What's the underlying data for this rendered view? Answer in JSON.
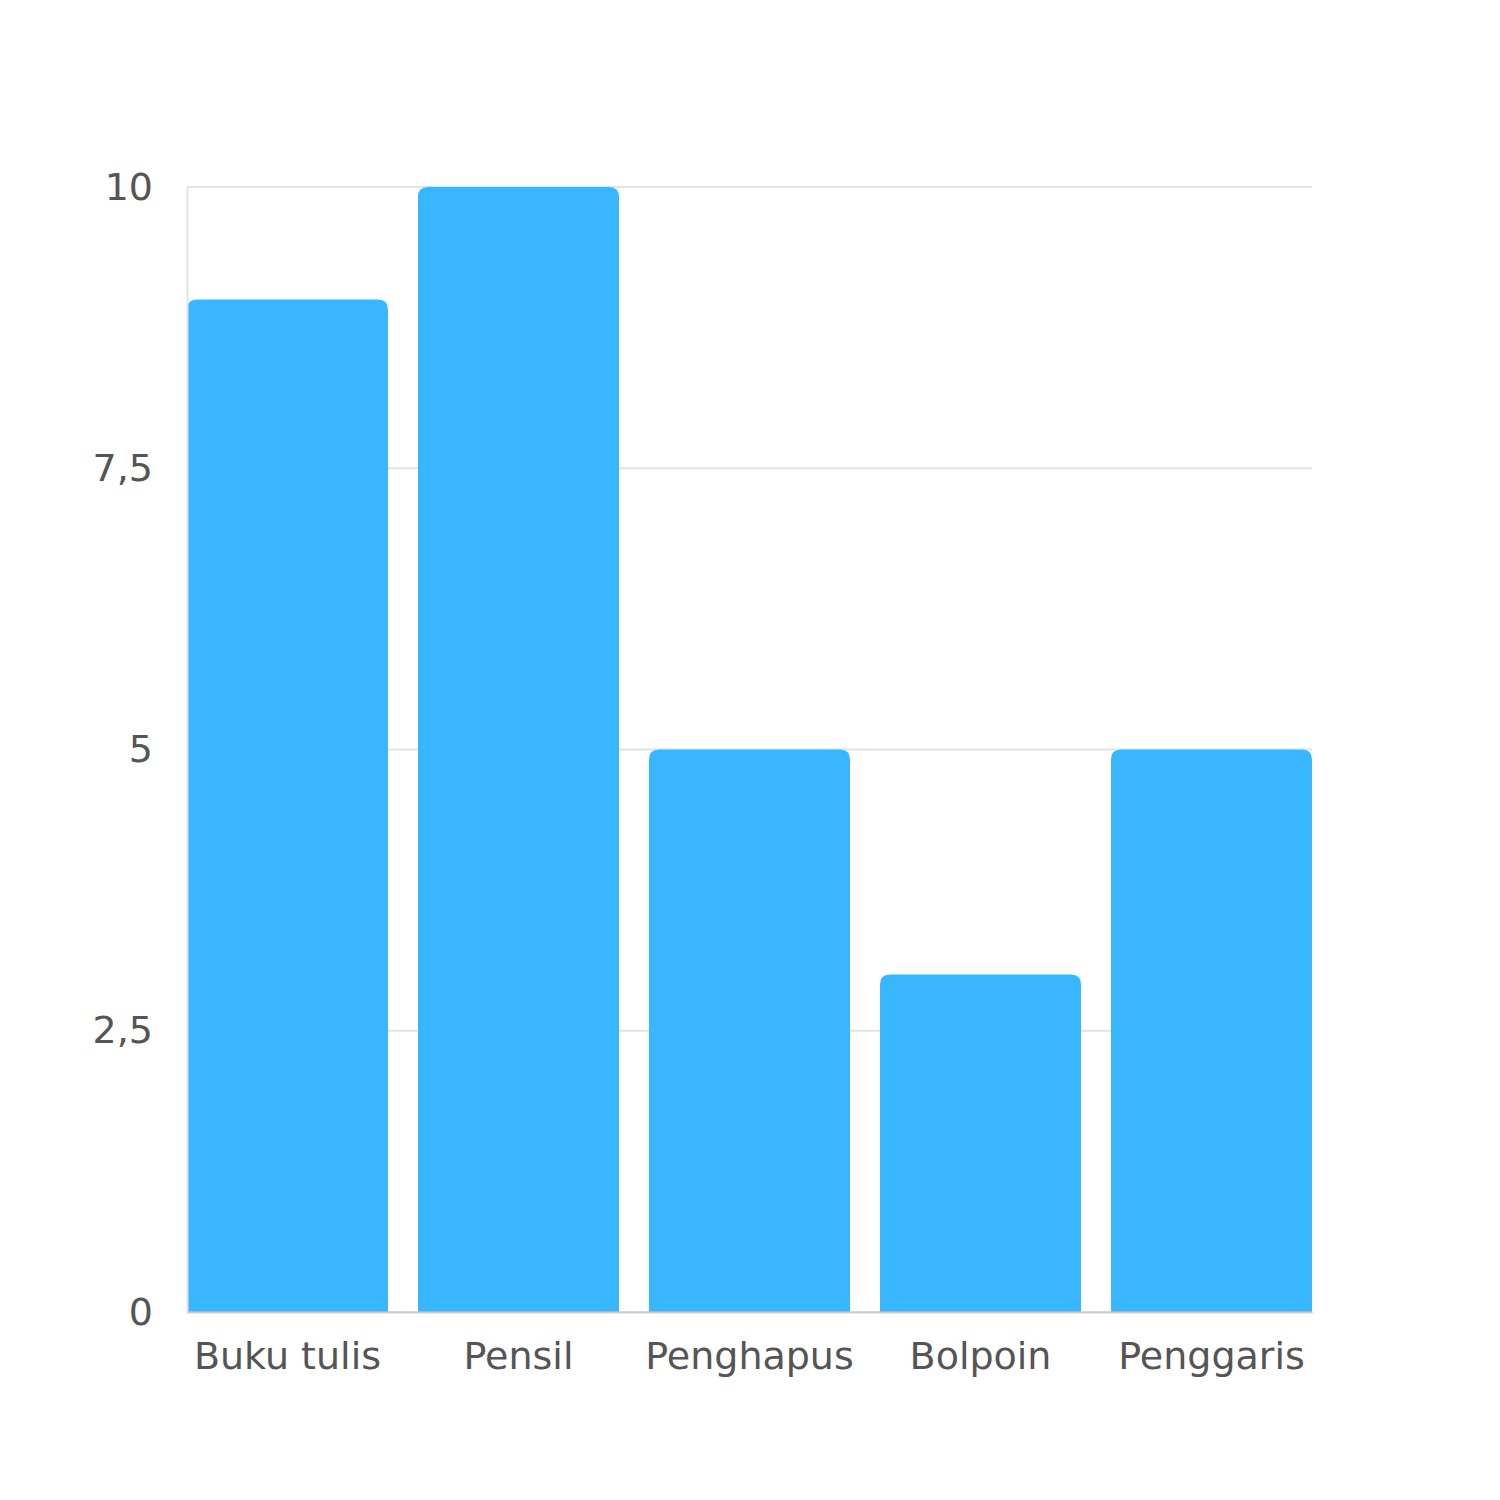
{
  "chart_data": {
    "type": "bar",
    "categories": [
      "Buku tulis",
      "Pensil",
      "Penghapus",
      "Bolpoin",
      "Penggaris"
    ],
    "values": [
      9,
      10,
      5,
      3,
      5
    ],
    "color": "#38b6ff",
    "ylim": [
      0,
      10
    ],
    "yticks": [
      0,
      {
        "value": 2.5,
        "label": "2,5"
      },
      5,
      {
        "value": 7.5,
        "label": "7,5"
      },
      10
    ],
    "grid": true
  }
}
